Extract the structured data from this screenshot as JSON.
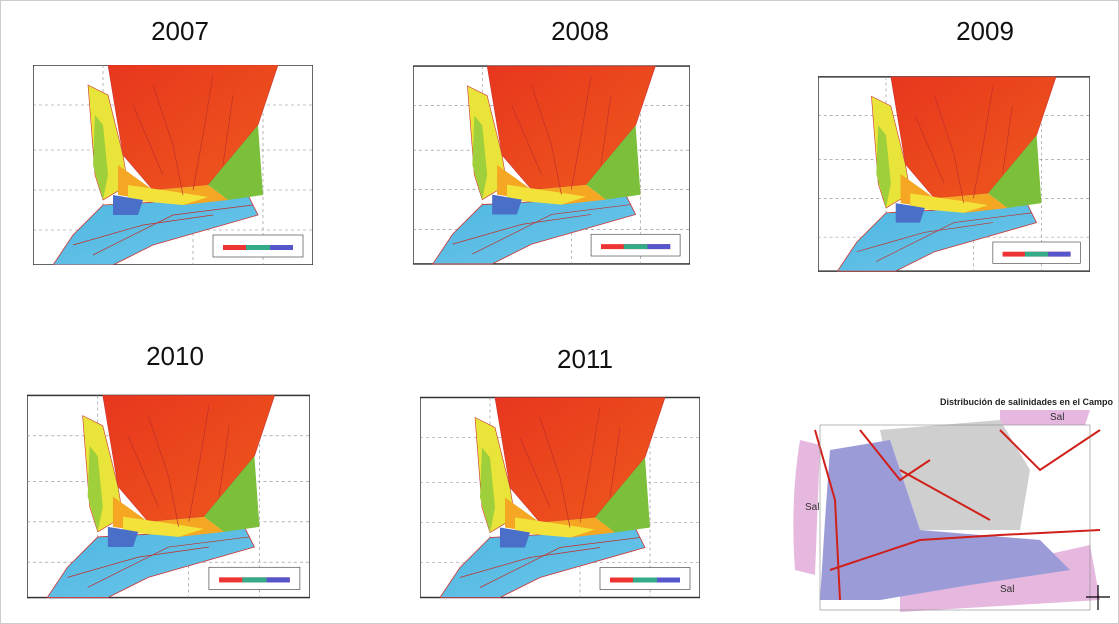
{
  "panels": [
    {
      "year": "2007"
    },
    {
      "year": "2008"
    },
    {
      "year": "2009"
    },
    {
      "year": "2010"
    },
    {
      "year": "2011"
    }
  ],
  "salinity_map": {
    "title": "Distribución de salinidades en el Campo",
    "labels": [
      "Sal",
      "Sal",
      "Sal"
    ]
  }
}
